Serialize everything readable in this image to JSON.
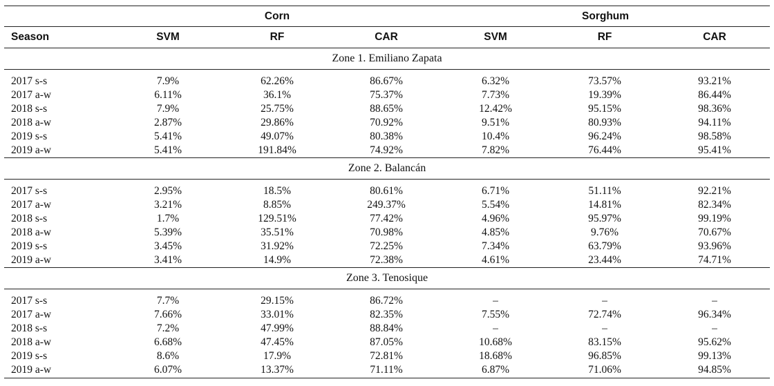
{
  "table": {
    "group_headers": [
      "Corn",
      "Sorghum"
    ],
    "column_headers": [
      "Season",
      "SVM",
      "RF",
      "CAR",
      "SVM",
      "RF",
      "CAR"
    ],
    "zones": [
      {
        "title": "Zone 1. Emiliano Zapata",
        "rows": [
          [
            "2017 s-s",
            "7.9%",
            "62.26%",
            "86.67%",
            "6.32%",
            "73.57%",
            "93.21%"
          ],
          [
            "2017 a-w",
            "6.11%",
            "36.1%",
            "75.37%",
            "7.73%",
            "19.39%",
            "86.44%"
          ],
          [
            "2018 s-s",
            "7.9%",
            "25.75%",
            "88.65%",
            "12.42%",
            "95.15%",
            "98.36%"
          ],
          [
            "2018 a-w",
            "2.87%",
            "29.86%",
            "70.92%",
            "9.51%",
            "80.93%",
            "94.11%"
          ],
          [
            "2019 s-s",
            "5.41%",
            "49.07%",
            "80.38%",
            "10.4%",
            "96.24%",
            "98.58%"
          ],
          [
            "2019 a-w",
            "5.41%",
            "191.84%",
            "74.92%",
            "7.82%",
            "76.44%",
            "95.41%"
          ]
        ]
      },
      {
        "title": "Zone 2. Balancán",
        "rows": [
          [
            "2017 s-s",
            "2.95%",
            "18.5%",
            "80.61%",
            "6.71%",
            "51.11%",
            "92.21%"
          ],
          [
            "2017 a-w",
            "3.21%",
            "8.85%",
            "249.37%",
            "5.54%",
            "14.81%",
            "82.34%"
          ],
          [
            "2018 s-s",
            "1.7%",
            "129.51%",
            "77.42%",
            "4.96%",
            "95.97%",
            "99.19%"
          ],
          [
            "2018 a-w",
            "5.39%",
            "35.51%",
            "70.98%",
            "4.85%",
            "9.76%",
            "70.67%"
          ],
          [
            "2019 s-s",
            "3.45%",
            "31.92%",
            "72.25%",
            "7.34%",
            "63.79%",
            "93.96%"
          ],
          [
            "2019 a-w",
            "3.41%",
            "14.9%",
            "72.38%",
            "4.61%",
            "23.44%",
            "74.71%"
          ]
        ]
      },
      {
        "title": "Zone 3. Tenosique",
        "rows": [
          [
            "2017 s-s",
            "7.7%",
            "29.15%",
            "86.72%",
            "–",
            "–",
            "–"
          ],
          [
            "2017 a-w",
            "7.66%",
            "33.01%",
            "82.35%",
            "7.55%",
            "72.74%",
            "96.34%"
          ],
          [
            "2018 s-s",
            "7.2%",
            "47.99%",
            "88.84%",
            "–",
            "–",
            "–"
          ],
          [
            "2018 a-w",
            "6.68%",
            "47.45%",
            "87.05%",
            "10.68%",
            "83.15%",
            "95.62%"
          ],
          [
            "2019 s-s",
            "8.6%",
            "17.9%",
            "72.81%",
            "18.68%",
            "96.85%",
            "99.13%"
          ],
          [
            "2019 a-w",
            "6.07%",
            "13.37%",
            "71.11%",
            "6.87%",
            "71.06%",
            "94.85%"
          ]
        ]
      }
    ]
  }
}
